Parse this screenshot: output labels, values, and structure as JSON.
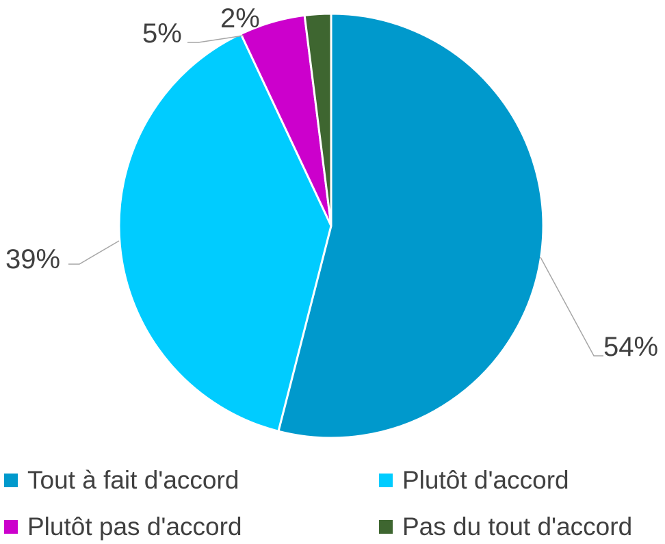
{
  "chart_data": {
    "type": "pie",
    "title": "",
    "slices": [
      {
        "label": "Tout à fait d'accord",
        "value": 54,
        "data_label": "54%",
        "color": "#0099CC"
      },
      {
        "label": "Plutôt d'accord",
        "value": 39,
        "data_label": "39%",
        "color": "#00CCFF"
      },
      {
        "label": "Plutôt pas d'accord",
        "value": 5,
        "data_label": "5%",
        "color": "#CC00CC"
      },
      {
        "label": "Pas du tout d'accord",
        "value": 2,
        "data_label": "2%",
        "color": "#3E6630"
      }
    ],
    "start_angle": "top (12 o'clock), clockwise",
    "legend_position": "bottom",
    "label_color": "#404040",
    "leader_line_color": "#A6A6A6"
  }
}
